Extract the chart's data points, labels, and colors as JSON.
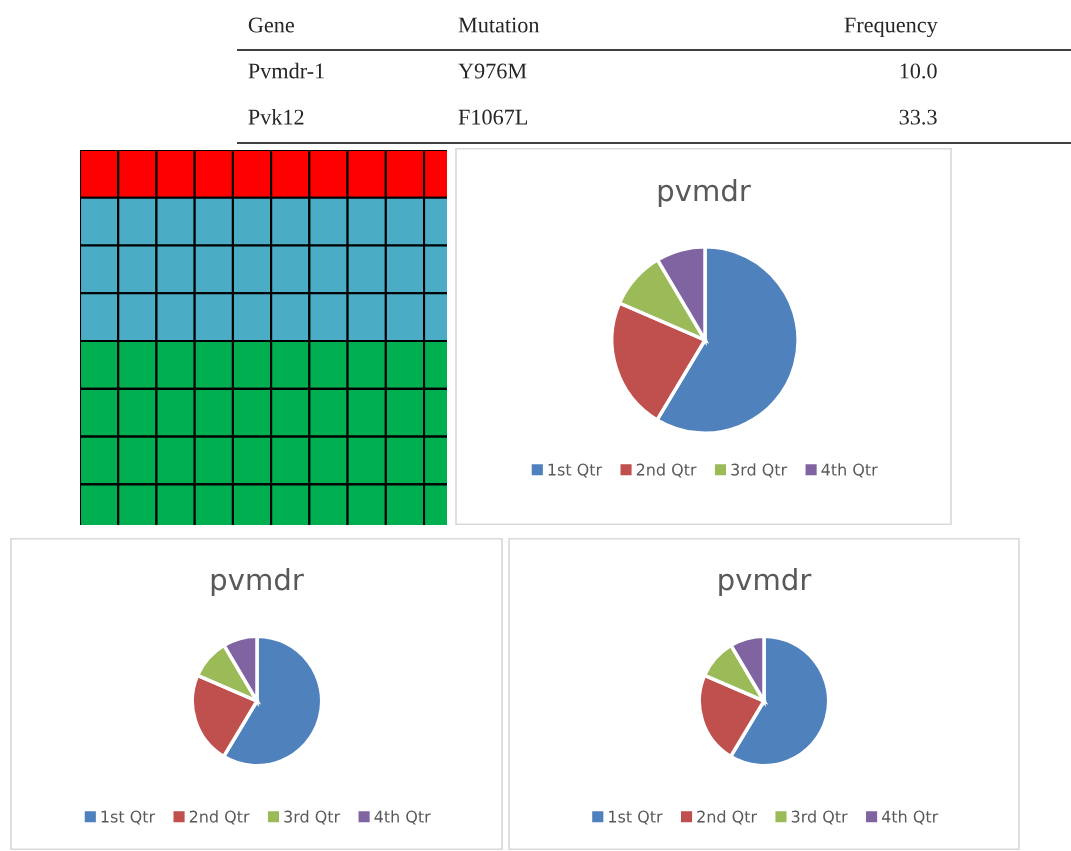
{
  "chart_data": [
    {
      "type": "other",
      "annotations": [
        "Gene",
        "Mutation",
        "Frequency",
        "Pvmdr-1",
        "Y976M",
        "10.0",
        "Pvk12",
        "F1067L",
        "33.3"
      ]
    },
    {
      "type": "pie",
      "title": "pvmdr",
      "categories": [
        "1st Qtr",
        "2nd Qtr",
        "3rd Qtr",
        "4th Qtr"
      ],
      "values": [
        58.6,
        22.9,
        10.0,
        8.5
      ],
      "colors": [
        "#4f81bd",
        "#c0504d",
        "#9bbb59",
        "#8064a2"
      ],
      "legend": "bottom"
    },
    {
      "type": "pie",
      "title": "pvmdr",
      "categories": [
        "1st Qtr",
        "2nd Qtr",
        "3rd Qtr",
        "4th Qtr"
      ],
      "values": [
        58.6,
        22.9,
        10.0,
        8.5
      ],
      "colors": [
        "#4f81bd",
        "#c0504d",
        "#9bbb59",
        "#8064a2"
      ],
      "legend": "bottom"
    },
    {
      "type": "pie",
      "title": "pvmdr",
      "categories": [
        "1st Qtr",
        "2nd Qtr",
        "3rd Qtr",
        "4th Qtr"
      ],
      "values": [
        58.6,
        22.9,
        10.0,
        8.5
      ],
      "colors": [
        "#4f81bd",
        "#c0504d",
        "#9bbb59",
        "#8064a2"
      ],
      "legend": "bottom"
    }
  ]
}
